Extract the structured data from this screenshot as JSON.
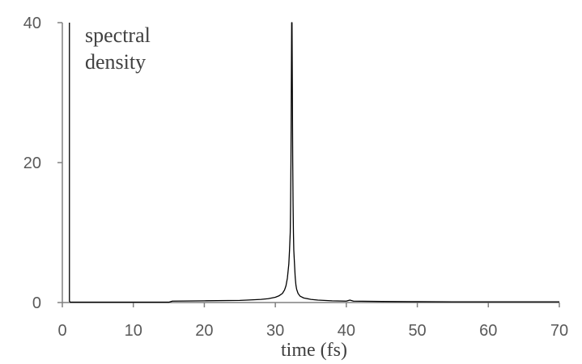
{
  "chart_data": {
    "type": "line",
    "xlabel": "time (fs)",
    "ylabel": "",
    "annotation": [
      "spectral",
      "density"
    ],
    "xlim": [
      0,
      70
    ],
    "ylim": [
      0,
      40
    ],
    "xticks": [
      0,
      10,
      20,
      30,
      40,
      50,
      60,
      70
    ],
    "yticks": [
      0,
      20,
      40
    ],
    "grid": false,
    "line_color": "#000000",
    "axis_color": "#808080",
    "series": [
      {
        "x": [
          1.0,
          1.0,
          1.1,
          5,
          10,
          15,
          15.5,
          20,
          25,
          26,
          28,
          29,
          30,
          30.5,
          31,
          31.3,
          31.5,
          31.7,
          31.9,
          32.0,
          32.1,
          32.15,
          32.2,
          32.25,
          32.3,
          32.35,
          32.4,
          32.45,
          32.5,
          32.55,
          32.6,
          32.7,
          32.8,
          32.9,
          33.0,
          33.2,
          33.5,
          34,
          35,
          36,
          38,
          40,
          40.5,
          41,
          45,
          50,
          55,
          60,
          65,
          70
        ],
        "y": [
          40,
          0.2,
          0.05,
          0.05,
          0.05,
          0.05,
          0.2,
          0.25,
          0.3,
          0.35,
          0.45,
          0.55,
          0.75,
          0.95,
          1.3,
          1.8,
          2.4,
          3.5,
          5.5,
          7.5,
          10,
          14,
          20,
          30,
          40,
          40,
          30,
          20,
          14,
          10,
          7.5,
          5.5,
          3.6,
          2.5,
          1.9,
          1.3,
          0.9,
          0.65,
          0.45,
          0.35,
          0.25,
          0.2,
          0.35,
          0.2,
          0.15,
          0.12,
          0.1,
          0.1,
          0.1,
          0.1
        ]
      }
    ]
  }
}
